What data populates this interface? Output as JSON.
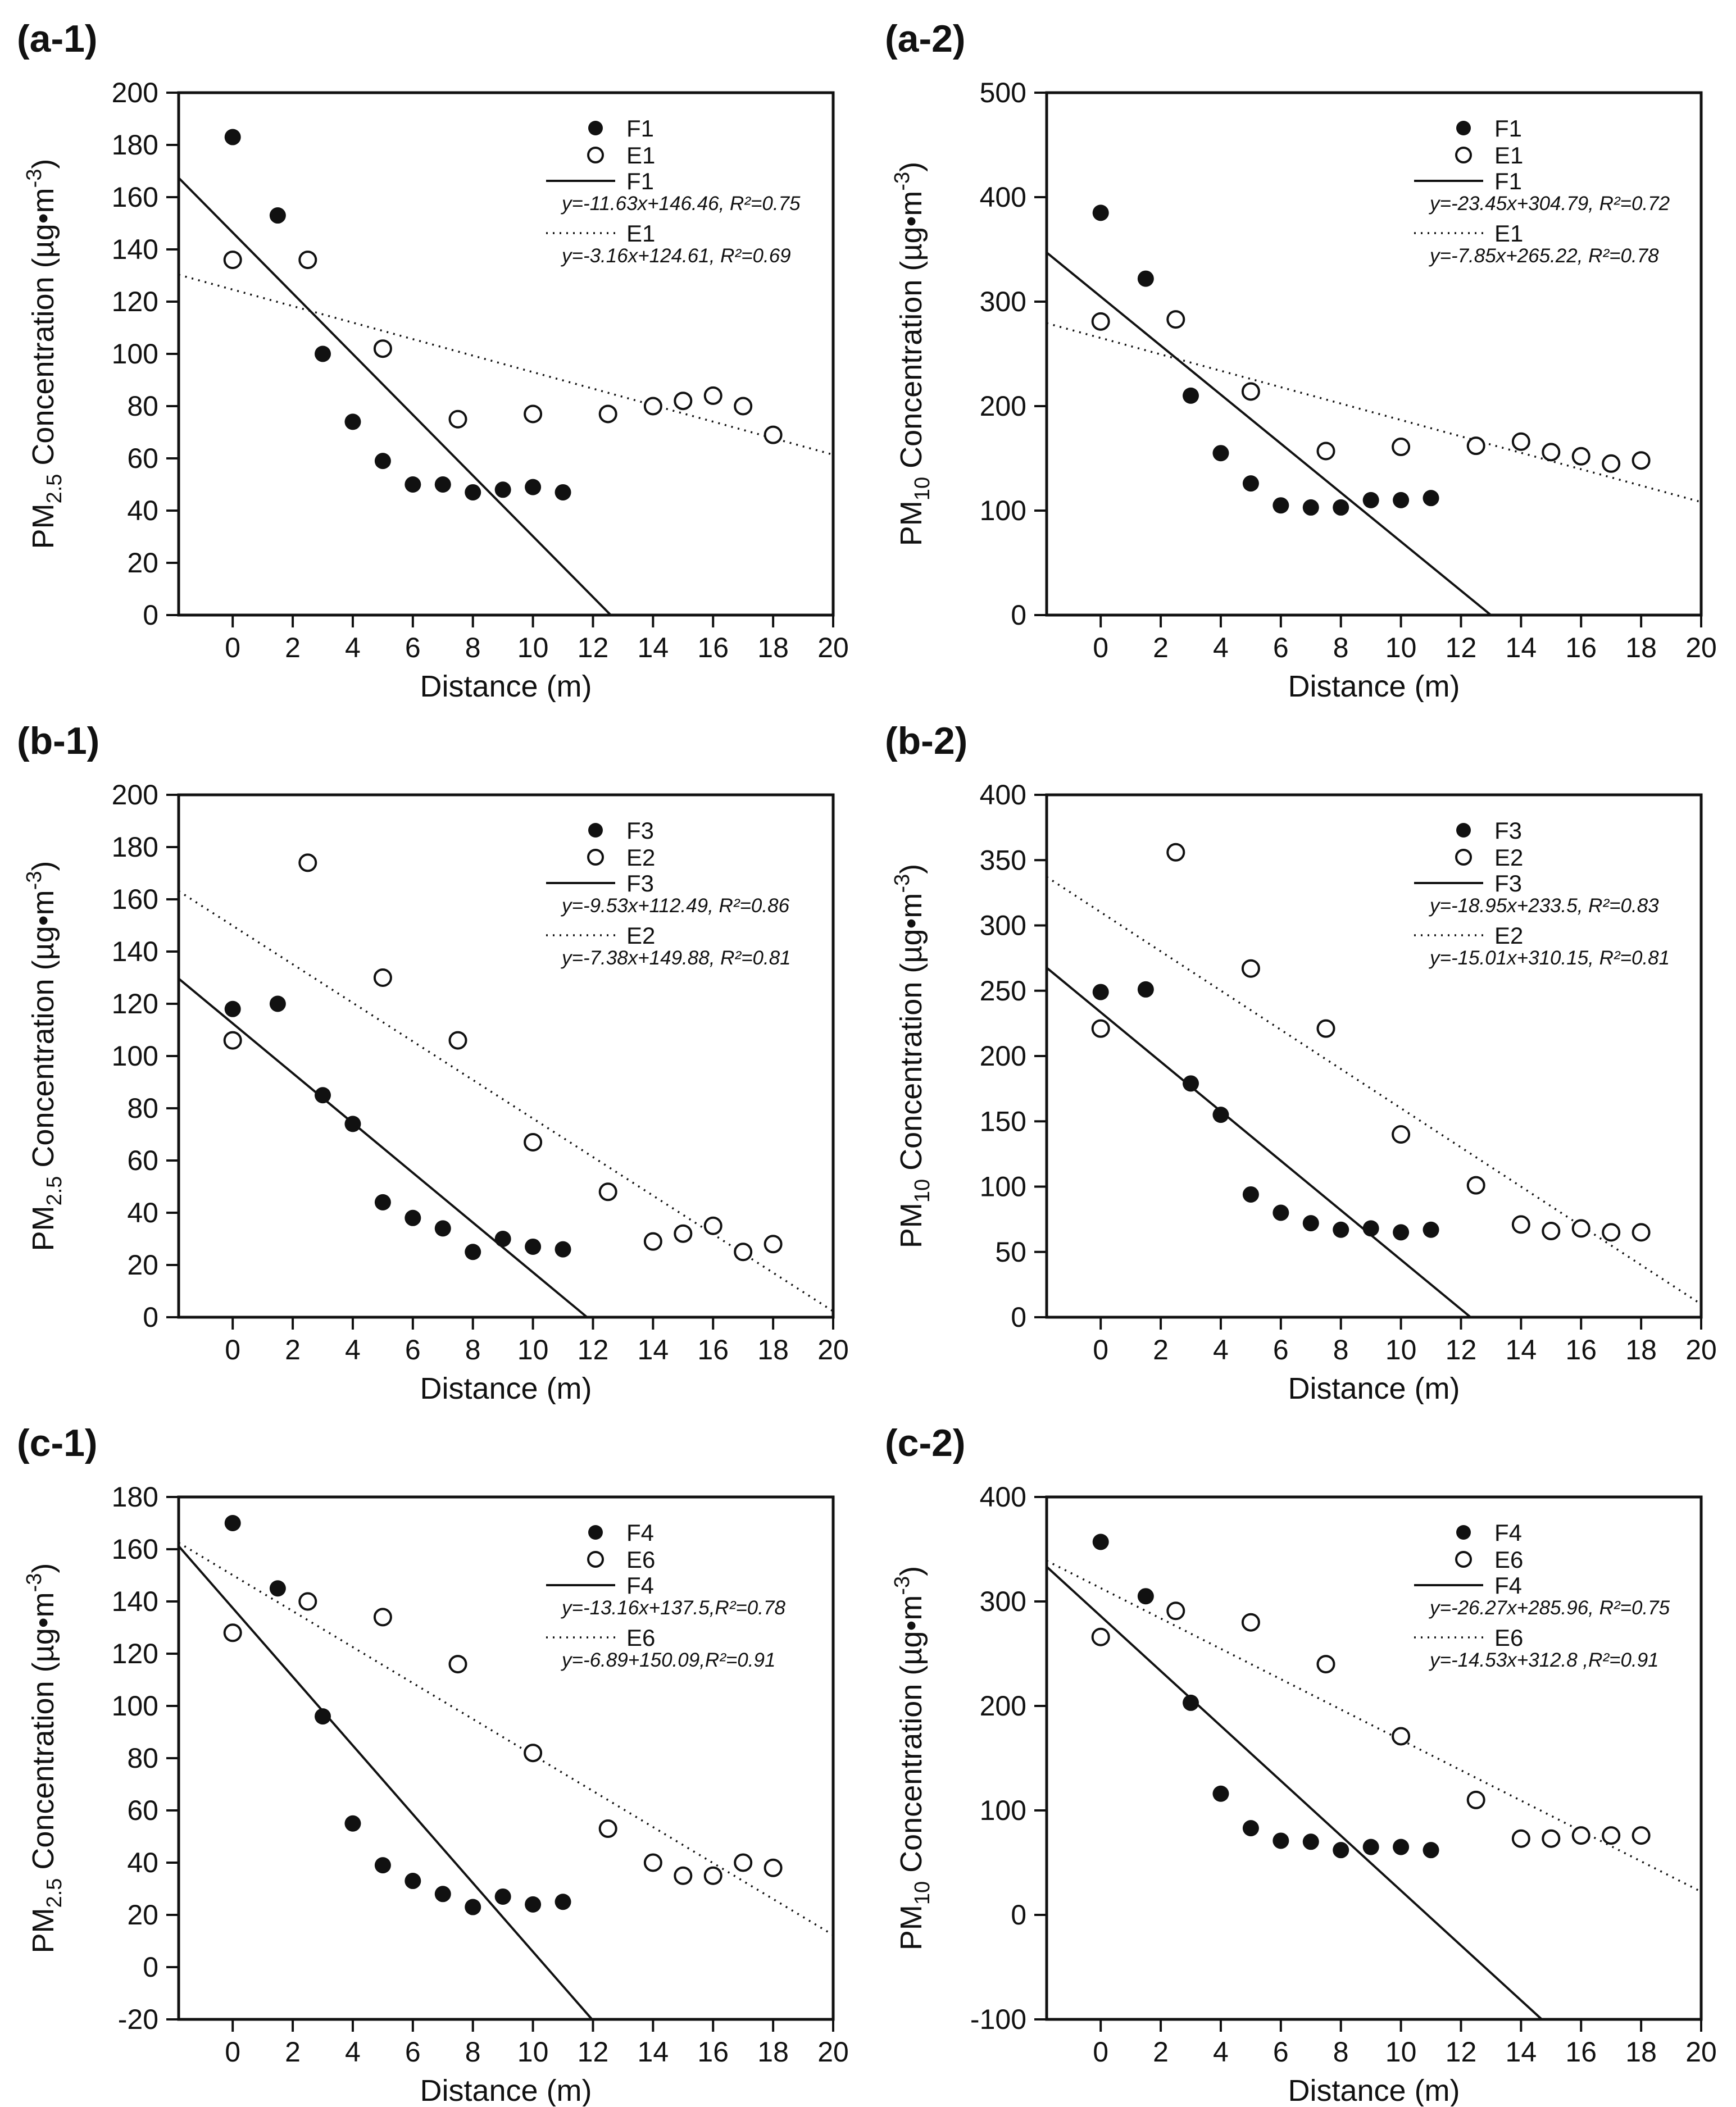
{
  "figure": {
    "background": "#ffffff",
    "ink_color": "#111111",
    "xlabel": "Distance (m)",
    "x_unit": "m",
    "y_unit": "µg•m-3"
  },
  "chart_data": [
    {
      "id": "a-1",
      "type": "scatter",
      "title": "(a-1)",
      "xlabel": "Distance (m)",
      "ylabel": {
        "prefix": "PM",
        "sub": "2.5",
        "mid": " Concentration (µg•m",
        "sup": "-3",
        "suffix": ")"
      },
      "xlim": [
        -1.8,
        20
      ],
      "ylim": [
        0,
        200
      ],
      "xticks": [
        0,
        2,
        4,
        6,
        8,
        10,
        12,
        14,
        16,
        18,
        20
      ],
      "yticks": [
        0,
        20,
        40,
        60,
        80,
        100,
        120,
        140,
        160,
        180,
        200
      ],
      "grid": false,
      "legend_position": "upper-right",
      "series": [
        {
          "name": "F1",
          "marker": "filled",
          "x": [
            0,
            1.5,
            3,
            4,
            5,
            6,
            7,
            8,
            9,
            10,
            11
          ],
          "y": [
            183,
            153,
            100,
            74,
            59,
            50,
            50,
            47,
            48,
            49,
            47
          ]
        },
        {
          "name": "E1",
          "marker": "open",
          "x": [
            0,
            2.5,
            5,
            7.5,
            10,
            12.5,
            14,
            15,
            16,
            17,
            18
          ],
          "y": [
            136,
            136,
            102,
            75,
            77,
            77,
            80,
            82,
            84,
            80,
            69
          ]
        }
      ],
      "fits": [
        {
          "name": "F1",
          "style": "solid",
          "slope": -11.63,
          "intercept": 146.46,
          "r2": 0.75,
          "equation": "y=-11.63x+146.46, R²=0.75"
        },
        {
          "name": "E1",
          "style": "dotted",
          "slope": -3.16,
          "intercept": 124.61,
          "r2": 0.69,
          "equation": "y=-3.16x+124.61, R²=0.69"
        }
      ]
    },
    {
      "id": "a-2",
      "type": "scatter",
      "title": "(a-2)",
      "xlabel": "Distance (m)",
      "ylabel": {
        "prefix": "PM",
        "sub": "10",
        "mid": " Concentration (µg•m",
        "sup": "-3",
        "suffix": ")"
      },
      "xlim": [
        -1.8,
        20
      ],
      "ylim": [
        0,
        500
      ],
      "xticks": [
        0,
        2,
        4,
        6,
        8,
        10,
        12,
        14,
        16,
        18,
        20
      ],
      "yticks": [
        0,
        100,
        200,
        300,
        400,
        500
      ],
      "grid": false,
      "legend_position": "upper-right",
      "series": [
        {
          "name": "F1",
          "marker": "filled",
          "x": [
            0,
            1.5,
            3,
            4,
            5,
            6,
            7,
            8,
            9,
            10,
            11
          ],
          "y": [
            385,
            322,
            210,
            155,
            126,
            105,
            103,
            103,
            110,
            110,
            112
          ]
        },
        {
          "name": "E1",
          "marker": "open",
          "x": [
            0,
            2.5,
            5,
            7.5,
            10,
            12.5,
            14,
            15,
            16,
            17,
            18
          ],
          "y": [
            281,
            283,
            214,
            157,
            161,
            162,
            166,
            156,
            152,
            145,
            148
          ]
        }
      ],
      "fits": [
        {
          "name": "F1",
          "style": "solid",
          "slope": -23.45,
          "intercept": 304.79,
          "r2": 0.72,
          "equation": "y=-23.45x+304.79, R²=0.72"
        },
        {
          "name": "E1",
          "style": "dotted",
          "slope": -7.85,
          "intercept": 265.22,
          "r2": 0.78,
          "equation": "y=-7.85x+265.22, R²=0.78"
        }
      ]
    },
    {
      "id": "b-1",
      "type": "scatter",
      "title": "(b-1)",
      "xlabel": "Distance (m)",
      "ylabel": {
        "prefix": "PM",
        "sub": "2.5",
        "mid": " Concentration (µg•m",
        "sup": "-3",
        "suffix": ")"
      },
      "xlim": [
        -1.8,
        20
      ],
      "ylim": [
        0,
        200
      ],
      "xticks": [
        0,
        2,
        4,
        6,
        8,
        10,
        12,
        14,
        16,
        18,
        20
      ],
      "yticks": [
        0,
        20,
        40,
        60,
        80,
        100,
        120,
        140,
        160,
        180,
        200
      ],
      "grid": false,
      "legend_position": "upper-right",
      "series": [
        {
          "name": "F3",
          "marker": "filled",
          "x": [
            0,
            1.5,
            3,
            4,
            5,
            6,
            7,
            8,
            9,
            10,
            11
          ],
          "y": [
            118,
            120,
            85,
            74,
            44,
            38,
            34,
            25,
            30,
            27,
            26
          ]
        },
        {
          "name": "E2",
          "marker": "open",
          "x": [
            0,
            2.5,
            5,
            7.5,
            10,
            12.5,
            14,
            15,
            16,
            17,
            18
          ],
          "y": [
            106,
            174,
            130,
            106,
            67,
            48,
            29,
            32,
            35,
            25,
            28
          ]
        }
      ],
      "fits": [
        {
          "name": "F3",
          "style": "solid",
          "slope": -9.53,
          "intercept": 112.49,
          "r2": 0.86,
          "equation": "y=-9.53x+112.49, R²=0.86"
        },
        {
          "name": "E2",
          "style": "dotted",
          "slope": -7.38,
          "intercept": 149.88,
          "r2": 0.81,
          "equation": "y=-7.38x+149.88, R²=0.81"
        }
      ]
    },
    {
      "id": "b-2",
      "type": "scatter",
      "title": "(b-2)",
      "xlabel": "Distance (m)",
      "ylabel": {
        "prefix": "PM",
        "sub": "10",
        "mid": " Concentration (µg•m",
        "sup": "-3",
        "suffix": ")"
      },
      "xlim": [
        -1.8,
        20
      ],
      "ylim": [
        0,
        400
      ],
      "xticks": [
        0,
        2,
        4,
        6,
        8,
        10,
        12,
        14,
        16,
        18,
        20
      ],
      "yticks": [
        0,
        50,
        100,
        150,
        200,
        250,
        300,
        350,
        400
      ],
      "grid": false,
      "legend_position": "upper-right",
      "series": [
        {
          "name": "F3",
          "marker": "filled",
          "x": [
            0,
            1.5,
            3,
            4,
            5,
            6,
            7,
            8,
            9,
            10,
            11
          ],
          "y": [
            249,
            251,
            179,
            155,
            94,
            80,
            72,
            67,
            68,
            65,
            67
          ]
        },
        {
          "name": "E2",
          "marker": "open",
          "x": [
            0,
            2.5,
            5,
            7.5,
            10,
            12.5,
            14,
            15,
            16,
            17,
            18
          ],
          "y": [
            221,
            356,
            267,
            221,
            140,
            101,
            71,
            66,
            68,
            65,
            65
          ]
        }
      ],
      "fits": [
        {
          "name": "F3",
          "style": "solid",
          "slope": -18.95,
          "intercept": 233.5,
          "r2": 0.83,
          "equation": "y=-18.95x+233.5, R²=0.83"
        },
        {
          "name": "E2",
          "style": "dotted",
          "slope": -15.01,
          "intercept": 310.15,
          "r2": 0.81,
          "equation": "y=-15.01x+310.15, R²=0.81"
        }
      ]
    },
    {
      "id": "c-1",
      "type": "scatter",
      "title": "(c-1)",
      "xlabel": "Distance (m)",
      "ylabel": {
        "prefix": "PM",
        "sub": "2.5",
        "mid": " Concentration (µg•m",
        "sup": "-3",
        "suffix": ")"
      },
      "xlim": [
        -1.8,
        20
      ],
      "ylim": [
        -20,
        180
      ],
      "xticks": [
        0,
        2,
        4,
        6,
        8,
        10,
        12,
        14,
        16,
        18,
        20
      ],
      "yticks": [
        -20,
        0,
        20,
        40,
        60,
        80,
        100,
        120,
        140,
        160,
        180
      ],
      "grid": false,
      "legend_position": "upper-right",
      "series": [
        {
          "name": "F4",
          "marker": "filled",
          "x": [
            0,
            1.5,
            3,
            4,
            5,
            6,
            7,
            8,
            9,
            10,
            11
          ],
          "y": [
            170,
            145,
            96,
            55,
            39,
            33,
            28,
            23,
            27,
            24,
            25
          ]
        },
        {
          "name": "E6",
          "marker": "open",
          "x": [
            0,
            2.5,
            5,
            7.5,
            10,
            12.5,
            14,
            15,
            16,
            17,
            18
          ],
          "y": [
            128,
            140,
            134,
            116,
            82,
            53,
            40,
            35,
            35,
            40,
            38
          ]
        }
      ],
      "fits": [
        {
          "name": "F4",
          "style": "solid",
          "slope": -13.16,
          "intercept": 137.5,
          "r2": 0.78,
          "equation": "y=-13.16x+137.5,R²=0.78"
        },
        {
          "name": "E6",
          "style": "dotted",
          "slope": -6.89,
          "intercept": 150.09,
          "r2": 0.91,
          "equation": "y=-6.89+150.09,R²=0.91"
        }
      ]
    },
    {
      "id": "c-2",
      "type": "scatter",
      "title": "(c-2)",
      "xlabel": "Distance (m)",
      "ylabel": {
        "prefix": "PM",
        "sub": "10",
        "mid": " Concentration (µg•m",
        "sup": "-3",
        "suffix": ")"
      },
      "xlim": [
        -1.8,
        20
      ],
      "ylim": [
        -100,
        400
      ],
      "xticks": [
        0,
        2,
        4,
        6,
        8,
        10,
        12,
        14,
        16,
        18,
        20
      ],
      "yticks": [
        -100,
        0,
        100,
        200,
        300,
        400
      ],
      "grid": false,
      "legend_position": "upper-right",
      "series": [
        {
          "name": "F4",
          "marker": "filled",
          "x": [
            0,
            1.5,
            3,
            4,
            5,
            6,
            7,
            8,
            9,
            10,
            11
          ],
          "y": [
            357,
            305,
            203,
            116,
            83,
            71,
            70,
            62,
            65,
            65,
            62
          ]
        },
        {
          "name": "E6",
          "marker": "open",
          "x": [
            0,
            2.5,
            5,
            7.5,
            10,
            12.5,
            14,
            15,
            16,
            17,
            18
          ],
          "y": [
            266,
            291,
            280,
            240,
            171,
            110,
            73,
            73,
            76,
            76,
            76
          ]
        }
      ],
      "fits": [
        {
          "name": "F4",
          "style": "solid",
          "slope": -26.27,
          "intercept": 285.96,
          "r2": 0.75,
          "equation": "y=-26.27x+285.96, R²=0.75"
        },
        {
          "name": "E6",
          "style": "dotted",
          "slope": -14.53,
          "intercept": 312.8,
          "r2": 0.91,
          "equation": "y=-14.53x+312.8 ,R²=0.91"
        }
      ]
    }
  ]
}
